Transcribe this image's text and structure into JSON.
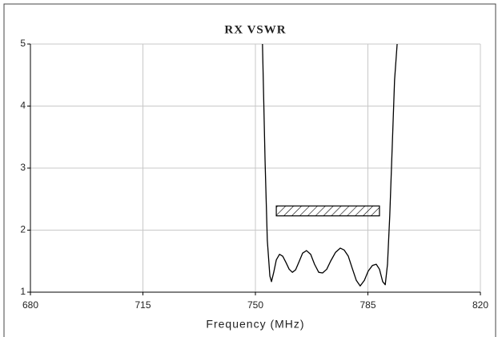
{
  "chart_data": {
    "type": "line",
    "title": "RX VSWR",
    "x_label": "Frequency (MHz)",
    "x": [
      752.2,
      753.0,
      753.7,
      754.5,
      755.0,
      755.7,
      756.5,
      757.5,
      758.5,
      759.5,
      760.5,
      761.5,
      762.5,
      763.5,
      764.7,
      765.9,
      767.2,
      768.4,
      769.7,
      770.9,
      772.2,
      773.4,
      774.9,
      776.4,
      777.6,
      778.9,
      780.1,
      781.4,
      782.6,
      783.9,
      785.1,
      786.4,
      787.6,
      788.6,
      789.6,
      790.4,
      791.1,
      791.8,
      792.6,
      793.3,
      794.1
    ],
    "series": [
      {
        "color": "#000000",
        "values": [
          5,
          3.13,
          1.84,
          1.26,
          1.17,
          1.32,
          1.52,
          1.61,
          1.58,
          1.48,
          1.37,
          1.32,
          1.36,
          1.48,
          1.63,
          1.67,
          1.61,
          1.45,
          1.32,
          1.31,
          1.37,
          1.5,
          1.64,
          1.71,
          1.68,
          1.58,
          1.39,
          1.19,
          1.1,
          1.19,
          1.34,
          1.43,
          1.45,
          1.37,
          1.17,
          1.12,
          1.45,
          2.23,
          3.39,
          4.42,
          5
        ]
      }
    ],
    "limit_box": {
      "x": [
        756.5,
        788.6
      ],
      "y": [
        2.23,
        2.39
      ]
    },
    "xlim": [
      680,
      820
    ],
    "xticks": [
      680,
      715,
      750,
      785,
      820
    ],
    "ylim": [
      1,
      5
    ],
    "yticks": [
      1,
      2,
      3,
      4,
      5
    ],
    "grid": true
  }
}
